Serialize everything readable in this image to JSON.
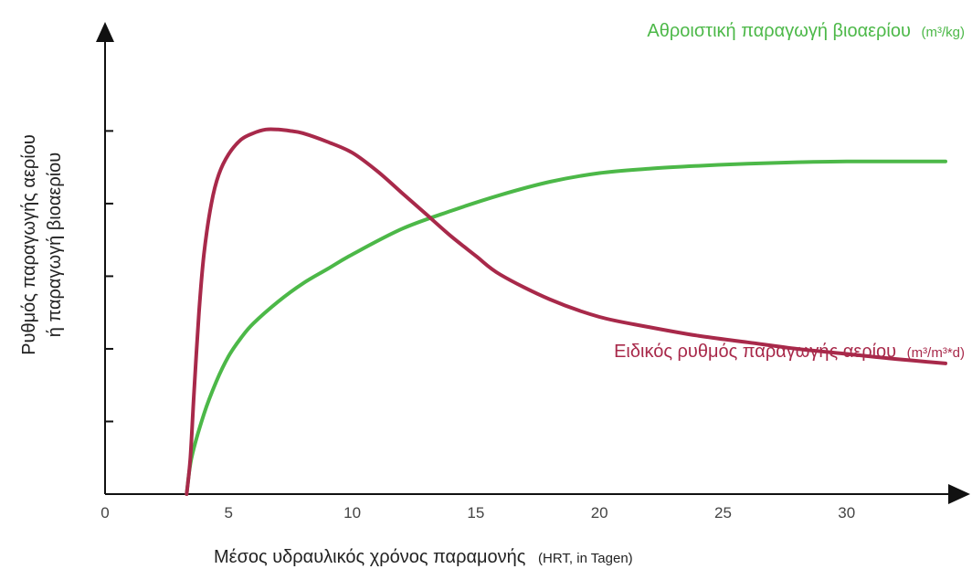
{
  "chart_data": {
    "type": "line",
    "xlabel": "Μέσος υδραυλικός χρόνος παραμονής",
    "xlabel_unit": "(HRT, in Tagen)",
    "ylabel_line1": "Ρυθμός παραγωγής αερίου",
    "ylabel_line2": "ή παραγωγή βιοαερίου",
    "xlim": [
      0,
      34
    ],
    "ylim": [
      0,
      6.3
    ],
    "x_ticks": [
      0,
      5,
      10,
      15,
      20,
      25,
      30
    ],
    "x_tick_labels": [
      "0",
      "5",
      "10",
      "15",
      "20",
      "25",
      "30"
    ],
    "y_ticks": [
      1,
      2,
      3,
      4,
      5
    ],
    "grid": false,
    "series": [
      {
        "name": "Αθροιστική παραγωγή βιοαερίου",
        "unit_label": "(m³/kg)",
        "color": "#4cb848",
        "x": [
          3.3,
          3.5,
          4.0,
          4.5,
          5.0,
          5.5,
          6.0,
          7.0,
          8.0,
          9.0,
          10.0,
          12.0,
          14.0,
          16.0,
          18.0,
          20.0,
          22.0,
          24.0,
          26.0,
          28.0,
          30.0,
          32.0,
          34.0
        ],
        "values": [
          0.0,
          0.5,
          1.1,
          1.55,
          1.9,
          2.15,
          2.35,
          2.65,
          2.9,
          3.1,
          3.3,
          3.65,
          3.9,
          4.12,
          4.3,
          4.42,
          4.48,
          4.52,
          4.55,
          4.57,
          4.58,
          4.58,
          4.58
        ]
      },
      {
        "name": "Ειδικός ρυθμός παραγωγής αερίου",
        "unit_label": "(m³/m³*d)",
        "color": "#a8294a",
        "x": [
          3.3,
          3.45,
          3.6,
          3.8,
          4.0,
          4.3,
          4.6,
          5.0,
          5.5,
          6.0,
          6.5,
          7.0,
          7.5,
          8.0,
          9.0,
          10.0,
          11.0,
          12.0,
          13.0,
          14.0,
          15.0,
          16.0,
          18.0,
          20.0,
          22.0,
          24.0,
          26.0,
          28.0,
          30.0,
          32.0,
          34.0
        ],
        "values": [
          0.0,
          0.5,
          1.4,
          2.5,
          3.3,
          4.0,
          4.4,
          4.68,
          4.88,
          4.97,
          5.02,
          5.02,
          5.0,
          4.97,
          4.85,
          4.7,
          4.45,
          4.15,
          3.85,
          3.55,
          3.28,
          3.02,
          2.68,
          2.44,
          2.3,
          2.18,
          2.09,
          2.0,
          1.93,
          1.86,
          1.8
        ]
      }
    ]
  }
}
